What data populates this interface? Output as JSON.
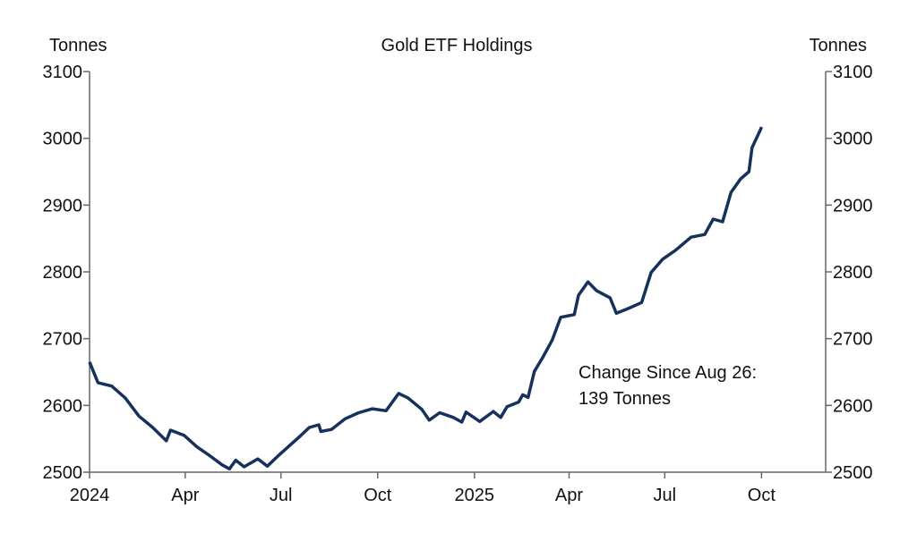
{
  "chart_data": {
    "type": "line",
    "title": "Gold ETF Holdings",
    "ylabel_left": "Tonnes",
    "ylabel_right": "Tonnes",
    "xlabel": "",
    "ylim": [
      2500,
      3100
    ],
    "yticks": [
      2500,
      2600,
      2700,
      2800,
      2900,
      3000,
      3100
    ],
    "xlim": [
      "2024-01-01",
      "2025-12-01"
    ],
    "xticks": [
      {
        "date": "2024-01-01",
        "label": "2024"
      },
      {
        "date": "2024-04-01",
        "label": "Apr"
      },
      {
        "date": "2024-07-01",
        "label": "Jul"
      },
      {
        "date": "2024-10-01",
        "label": "Oct"
      },
      {
        "date": "2025-01-01",
        "label": "2025"
      },
      {
        "date": "2025-04-01",
        "label": "Apr"
      },
      {
        "date": "2025-07-01",
        "label": "Jul"
      },
      {
        "date": "2025-10-01",
        "label": "Oct"
      }
    ],
    "grid": false,
    "line_color": "#16325c",
    "annotation": [
      "Change Since Aug 26:",
      "139 Tonnes"
    ],
    "series": [
      {
        "x": [
          "2024-01-01",
          "2024-01-09",
          "2024-01-22",
          "2024-02-04",
          "2024-02-17",
          "2024-03-01",
          "2024-03-14",
          "2024-03-18",
          "2024-03-31",
          "2024-04-12",
          "2024-04-25",
          "2024-05-06",
          "2024-05-13",
          "2024-05-19",
          "2024-05-27",
          "2024-06-09",
          "2024-06-18",
          "2024-06-28",
          "2024-07-08",
          "2024-07-20",
          "2024-07-28",
          "2024-08-06",
          "2024-08-08",
          "2024-08-18",
          "2024-08-31",
          "2024-09-13",
          "2024-09-26",
          "2024-10-09",
          "2024-10-21",
          "2024-10-30",
          "2024-11-12",
          "2024-11-19",
          "2024-11-29",
          "2024-12-12",
          "2024-12-20",
          "2024-12-24",
          "2025-01-06",
          "2025-01-19",
          "2025-01-26",
          "2025-02-01",
          "2025-02-12",
          "2025-02-16",
          "2025-02-21",
          "2025-02-27",
          "2025-03-07",
          "2025-03-16",
          "2025-03-24",
          "2025-04-06",
          "2025-04-10",
          "2025-04-19",
          "2025-04-27",
          "2025-05-10",
          "2025-05-16",
          "2025-05-27",
          "2025-06-09",
          "2025-06-18",
          "2025-06-29",
          "2025-07-11",
          "2025-07-26",
          "2025-08-08",
          "2025-08-16",
          "2025-08-25",
          "2025-09-02",
          "2025-09-11",
          "2025-09-19",
          "2025-09-22",
          "2025-09-30",
          "2025-10-01"
        ],
        "y": [
          2665,
          2634,
          2629,
          2611,
          2584,
          2567,
          2547,
          2563,
          2555,
          2538,
          2524,
          2511,
          2505,
          2518,
          2508,
          2520,
          2509,
          2524,
          2538,
          2555,
          2567,
          2571,
          2561,
          2564,
          2580,
          2589,
          2595,
          2592,
          2618,
          2611,
          2594,
          2578,
          2589,
          2582,
          2575,
          2590,
          2576,
          2591,
          2582,
          2598,
          2605,
          2616,
          2612,
          2651,
          2672,
          2698,
          2732,
          2736,
          2765,
          2785,
          2772,
          2761,
          2738,
          2745,
          2754,
          2799,
          2819,
          2832,
          2852,
          2856,
          2879,
          2875,
          2919,
          2939,
          2950,
          2986,
          3013,
          3017
        ]
      }
    ]
  }
}
